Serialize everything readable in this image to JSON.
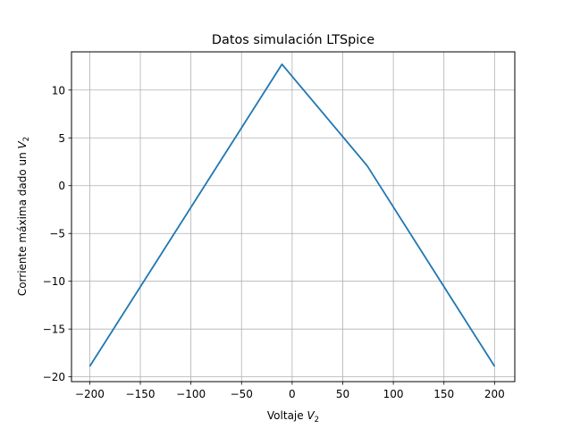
{
  "chart_data": {
    "type": "line",
    "title": "Datos simulación LTSpice",
    "xlabel": {
      "base": "Voltaje ",
      "var": "V",
      "sub": "2"
    },
    "ylabel": {
      "base": "Corriente máxima dado un ",
      "var": "V",
      "sub": "2"
    },
    "xlim": [
      -218,
      220
    ],
    "ylim": [
      -20.5,
      14.0
    ],
    "grid": true,
    "x_ticks": [
      -200,
      -150,
      -100,
      -50,
      0,
      50,
      100,
      150,
      200
    ],
    "y_ticks": [
      -20,
      -15,
      -10,
      -5,
      0,
      5,
      10
    ],
    "x_tick_labels": [
      "−200",
      "−150",
      "−100",
      "−50",
      "0",
      "50",
      "100",
      "150",
      "200"
    ],
    "y_tick_labels": [
      "−20",
      "−15",
      "−10",
      "−5",
      "0",
      "5",
      "10"
    ],
    "series": [
      {
        "color": "#1f77b4",
        "x": [
          -200,
          -10,
          74,
          200
        ],
        "y": [
          -18.9,
          12.7,
          2.1,
          -18.9
        ]
      }
    ]
  }
}
